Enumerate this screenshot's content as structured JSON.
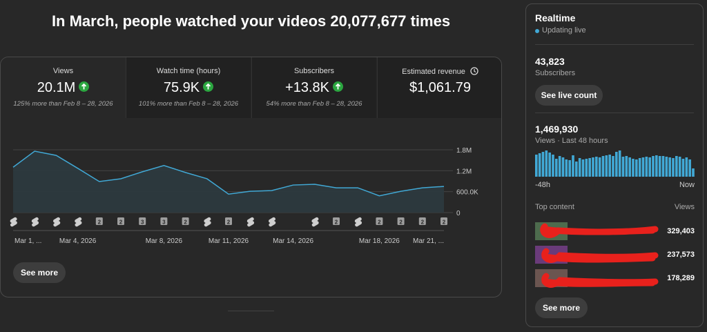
{
  "header": {
    "title": "In March, people watched your videos 20,077,677 times"
  },
  "metrics": [
    {
      "label": "Views",
      "value": "20.1M",
      "trend": "up",
      "comparison": "125% more than Feb 8 – 28, 2026"
    },
    {
      "label": "Watch time (hours)",
      "value": "75.9K",
      "trend": "up",
      "comparison": "101% more than Feb 8 – 28, 2026"
    },
    {
      "label": "Subscribers",
      "value": "+13.8K",
      "trend": "up",
      "comparison": "54% more than Feb 8 – 28, 2026"
    },
    {
      "label": "Estimated revenue",
      "value": "$1,061.79"
    }
  ],
  "chart": {
    "type": "line",
    "color": "#41a9d6",
    "categories": [
      "Mar 1, ...",
      null,
      null,
      "Mar 4, 2026",
      null,
      null,
      null,
      "Mar 8, 2026",
      null,
      null,
      "Mar 11, 2026",
      null,
      null,
      "Mar 14, 2026",
      null,
      null,
      null,
      "Mar 18, 2026",
      null,
      null,
      "Mar 21, ..."
    ],
    "values": [
      1300000,
      1760000,
      1640000,
      1270000,
      890000,
      970000,
      1170000,
      1350000,
      1150000,
      970000,
      530000,
      610000,
      630000,
      790000,
      810000,
      710000,
      710000,
      480000,
      610000,
      710000,
      750000
    ],
    "markers": [
      null,
      null,
      null,
      null,
      2,
      2,
      3,
      3,
      2,
      null,
      2,
      null,
      null,
      null,
      null,
      2,
      null,
      2,
      2,
      2,
      2
    ],
    "ylim": [
      0,
      1800000
    ],
    "yticks": [
      0,
      {
        "value": 600000,
        "label": "600.0K"
      },
      {
        "value": 1200000,
        "label": "1.2M"
      },
      {
        "value": 1800000,
        "label": "1.8M"
      }
    ],
    "grid": true
  },
  "see_more": "See more",
  "realtime": {
    "title": "Realtime",
    "status": "Updating live",
    "subscribers": {
      "value": "43,823",
      "label": "Subscribers"
    },
    "live_count_button": "See live count",
    "views": {
      "value": "1,469,930",
      "label": "Views · Last 48 hours"
    },
    "hourly_views": [
      32000,
      34000,
      36000,
      38000,
      35000,
      32000,
      26000,
      30000,
      28000,
      25000,
      24000,
      31000,
      22000,
      27000,
      25000,
      26000,
      27000,
      28000,
      29000,
      28000,
      30000,
      31000,
      32000,
      30000,
      36000,
      38000,
      29000,
      30000,
      28000,
      26000,
      25000,
      27000,
      28000,
      29000,
      28000,
      30000,
      31000,
      30000,
      30000,
      29000,
      28000,
      27000,
      30000,
      29000,
      26000,
      28000,
      25000,
      12000
    ],
    "start_label": "-48h",
    "end_label": "Now",
    "top_content": {
      "title": "Top content",
      "metric": "Views",
      "items": [
        {
          "views": "329,403"
        },
        {
          "views": "237,573"
        },
        {
          "views": "178,289"
        }
      ]
    },
    "see_more": "See more"
  }
}
